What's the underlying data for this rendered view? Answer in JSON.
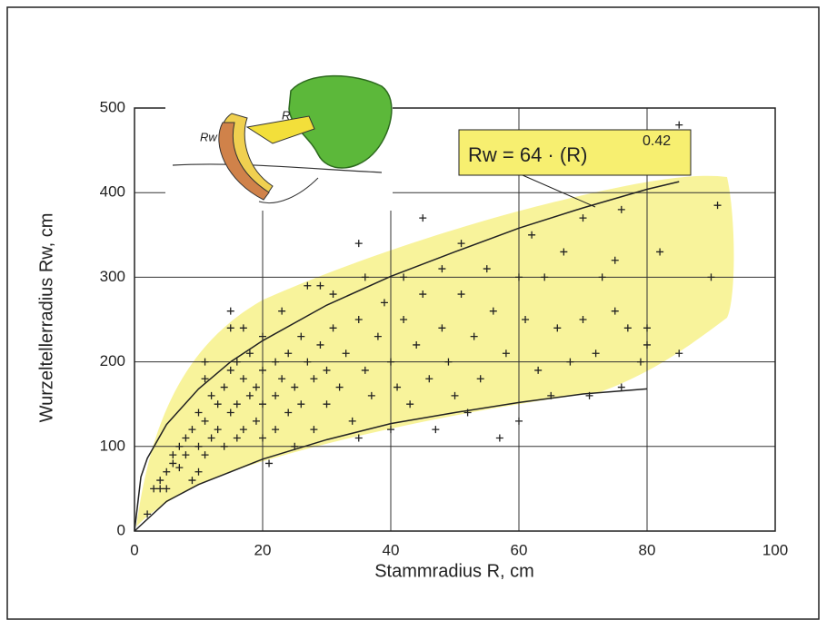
{
  "chart_data": {
    "type": "scatter",
    "xlabel": "Stammradius R, cm",
    "ylabel": "Wurzeltellerradius Rw, cm",
    "annotation": "Rw = 64 · (R)",
    "annotation_exponent": "0.42",
    "illustration_labels": [
      "Rw",
      "R"
    ],
    "xlim": [
      0,
      100
    ],
    "ylim": [
      0,
      500
    ],
    "xticks": [
      0,
      20,
      40,
      60,
      80,
      100
    ],
    "yticks": [
      0,
      100,
      200,
      300,
      400,
      500
    ],
    "grid": true,
    "color": "#222222",
    "x": [
      2,
      3,
      4,
      4,
      5,
      5,
      6,
      6,
      7,
      7,
      8,
      8,
      9,
      9,
      10,
      10,
      10,
      11,
      11,
      11,
      11,
      12,
      12,
      13,
      13,
      14,
      14,
      15,
      15,
      15,
      15,
      16,
      16,
      16,
      17,
      17,
      17,
      18,
      18,
      19,
      19,
      20,
      20,
      20,
      20,
      21,
      22,
      22,
      22,
      23,
      23,
      24,
      24,
      25,
      25,
      26,
      26,
      27,
      27,
      28,
      28,
      29,
      29,
      30,
      30,
      31,
      31,
      32,
      33,
      34,
      35,
      35,
      35,
      36,
      36,
      37,
      38,
      39,
      40,
      40,
      41,
      42,
      42,
      43,
      44,
      45,
      45,
      46,
      47,
      48,
      48,
      49,
      50,
      51,
      51,
      52,
      53,
      54,
      55,
      56,
      57,
      58,
      60,
      60,
      61,
      62,
      63,
      64,
      65,
      66,
      67,
      68,
      70,
      70,
      71,
      72,
      73,
      75,
      75,
      76,
      76,
      77,
      79,
      80,
      80,
      82,
      85,
      85,
      90,
      91
    ],
    "values": [
      20,
      50,
      50,
      60,
      50,
      70,
      80,
      90,
      100,
      75,
      110,
      90,
      120,
      60,
      140,
      100,
      70,
      200,
      180,
      130,
      90,
      160,
      110,
      150,
      120,
      170,
      100,
      260,
      240,
      190,
      140,
      200,
      150,
      110,
      240,
      180,
      120,
      210,
      160,
      170,
      130,
      230,
      190,
      150,
      110,
      80,
      200,
      160,
      120,
      260,
      180,
      140,
      210,
      170,
      100,
      230,
      150,
      290,
      200,
      120,
      180,
      220,
      290,
      190,
      150,
      280,
      240,
      170,
      210,
      130,
      340,
      250,
      110,
      300,
      190,
      160,
      230,
      270,
      200,
      120,
      170,
      300,
      250,
      150,
      220,
      370,
      280,
      180,
      120,
      310,
      240,
      200,
      160,
      340,
      280,
      140,
      230,
      180,
      310,
      260,
      110,
      210,
      130,
      300,
      250,
      350,
      190,
      300,
      160,
      240,
      330,
      200,
      370,
      250,
      160,
      210,
      300,
      320,
      260,
      170,
      380,
      240,
      200,
      240,
      220,
      330,
      480,
      210,
      300,
      385
    ],
    "curves": [
      {
        "color": "#222222",
        "x": [
          0,
          1,
          2,
          5,
          10,
          15,
          20,
          30,
          40,
          50,
          60,
          70,
          80,
          85
        ],
        "values": [
          0,
          64,
          86,
          126,
          168,
          200,
          225,
          267,
          301,
          330,
          358,
          382,
          404,
          413
        ]
      },
      {
        "color": "#222222",
        "x": [
          0,
          5,
          10,
          20,
          30,
          40,
          50,
          60,
          70,
          80
        ],
        "values": [
          0,
          35,
          55,
          85,
          108,
          127,
          140,
          152,
          162,
          168
        ]
      }
    ]
  }
}
